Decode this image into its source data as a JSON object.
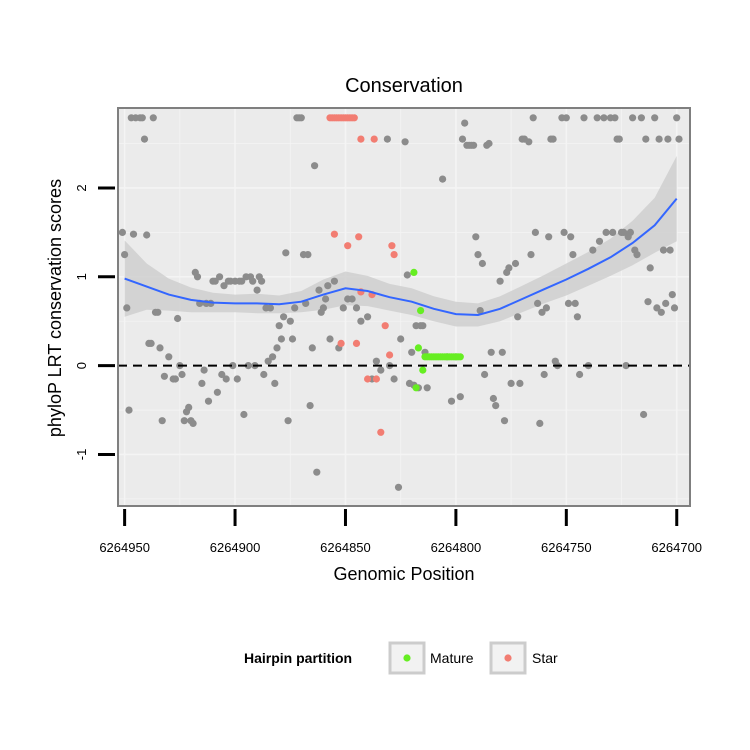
{
  "chart_data": {
    "type": "scatter",
    "title": "Conservation",
    "xlabel": "Genomic Position",
    "ylabel": "phyloP LRT conservation scores",
    "xlim": [
      6264953,
      6264694
    ],
    "x_reversed": true,
    "ylim": [
      -1.58,
      2.9
    ],
    "x_ticks": [
      6264950,
      6264900,
      6264850,
      6264800,
      6264750,
      6264700
    ],
    "x_tick_labels": [
      "6264950",
      "6264900",
      "6264850",
      "6264800",
      "6264750",
      "6264700"
    ],
    "y_ticks": [
      -1,
      0,
      1,
      2
    ],
    "y_tick_labels": [
      "-1",
      "0",
      "1",
      "2"
    ],
    "grid": true,
    "reference_line": {
      "y": 0,
      "style": "dashed",
      "color": "#000000"
    },
    "legend": {
      "title": "Hairpin partition",
      "position": "bottom",
      "entries": [
        {
          "label": "Mature",
          "color": "#66ee22"
        },
        {
          "label": "Star",
          "color": "#f27d72"
        }
      ]
    },
    "colors": {
      "other": "#8c8c8c",
      "Mature": "#66ee22",
      "Star": "#f27d72",
      "smooth": "#3366ff",
      "ribbon": "#cfcfcf",
      "panel": "#ebebeb",
      "grid": "#f4f4f4"
    },
    "smooth": {
      "x": [
        6264950,
        6264940,
        6264930,
        6264920,
        6264910,
        6264900,
        6264890,
        6264880,
        6264870,
        6264860,
        6264850,
        6264840,
        6264830,
        6264820,
        6264810,
        6264800,
        6264790,
        6264780,
        6264770,
        6264760,
        6264750,
        6264740,
        6264730,
        6264720,
        6264710,
        6264700
      ],
      "y": [
        0.98,
        0.89,
        0.8,
        0.74,
        0.71,
        0.7,
        0.7,
        0.69,
        0.72,
        0.8,
        0.87,
        0.84,
        0.77,
        0.72,
        0.64,
        0.58,
        0.57,
        0.64,
        0.75,
        0.86,
        0.97,
        1.09,
        1.22,
        1.38,
        1.58,
        1.88
      ],
      "lower": [
        0.55,
        0.63,
        0.62,
        0.6,
        0.6,
        0.6,
        0.59,
        0.59,
        0.6,
        0.63,
        0.68,
        0.67,
        0.62,
        0.57,
        0.5,
        0.44,
        0.44,
        0.5,
        0.6,
        0.7,
        0.79,
        0.9,
        1.01,
        1.13,
        1.27,
        1.4
      ],
      "upper": [
        1.41,
        1.15,
        0.98,
        0.88,
        0.82,
        0.8,
        0.81,
        0.79,
        0.84,
        0.97,
        1.06,
        1.01,
        0.92,
        0.87,
        0.78,
        0.72,
        0.7,
        0.78,
        0.9,
        1.02,
        1.15,
        1.28,
        1.43,
        1.63,
        1.89,
        2.36
      ]
    },
    "series": [
      {
        "name": "",
        "points": [
          [
            6264951,
            1.5
          ],
          [
            6264950,
            1.25
          ],
          [
            6264949,
            0.65
          ],
          [
            6264948,
            -0.5
          ],
          [
            6264947,
            2.79
          ],
          [
            6264946,
            1.48
          ],
          [
            6264945,
            2.79
          ],
          [
            6264943,
            2.79
          ],
          [
            6264942,
            2.79
          ],
          [
            6264941,
            2.55
          ],
          [
            6264940,
            1.47
          ],
          [
            6264939,
            0.25
          ],
          [
            6264938,
            0.25
          ],
          [
            6264937,
            2.79
          ],
          [
            6264936,
            0.6
          ],
          [
            6264935,
            0.6
          ],
          [
            6264934,
            0.2
          ],
          [
            6264933,
            -0.62
          ],
          [
            6264932,
            -0.12
          ],
          [
            6264930,
            0.1
          ],
          [
            6264928,
            -0.15
          ],
          [
            6264927,
            -0.15
          ],
          [
            6264926,
            0.53
          ],
          [
            6264925,
            0.0
          ],
          [
            6264924,
            -0.1
          ],
          [
            6264923,
            -0.62
          ],
          [
            6264922,
            -0.52
          ],
          [
            6264921,
            -0.47
          ],
          [
            6264920,
            -0.62
          ],
          [
            6264919,
            -0.65
          ],
          [
            6264918,
            1.05
          ],
          [
            6264917,
            1.0
          ],
          [
            6264916,
            0.7
          ],
          [
            6264915,
            -0.2
          ],
          [
            6264914,
            -0.05
          ],
          [
            6264913,
            0.7
          ],
          [
            6264912,
            -0.4
          ],
          [
            6264911,
            0.7
          ],
          [
            6264910,
            0.95
          ],
          [
            6264909,
            0.95
          ],
          [
            6264908,
            -0.3
          ],
          [
            6264907,
            1.0
          ],
          [
            6264906,
            -0.1
          ],
          [
            6264905,
            0.9
          ],
          [
            6264904,
            -0.15
          ],
          [
            6264903,
            0.95
          ],
          [
            6264902,
            0.95
          ],
          [
            6264901,
            0.0
          ],
          [
            6264900,
            0.95
          ],
          [
            6264899,
            -0.15
          ],
          [
            6264898,
            0.95
          ],
          [
            6264897,
            0.95
          ],
          [
            6264896,
            -0.55
          ],
          [
            6264895,
            1.0
          ],
          [
            6264894,
            0.0
          ],
          [
            6264893,
            1.0
          ],
          [
            6264892,
            0.95
          ],
          [
            6264891,
            0.0
          ],
          [
            6264890,
            0.85
          ],
          [
            6264889,
            1.0
          ],
          [
            6264888,
            0.95
          ],
          [
            6264887,
            -0.1
          ],
          [
            6264886,
            0.65
          ],
          [
            6264885,
            0.05
          ],
          [
            6264884,
            0.65
          ],
          [
            6264883,
            0.1
          ],
          [
            6264882,
            -0.2
          ],
          [
            6264881,
            0.2
          ],
          [
            6264880,
            0.45
          ],
          [
            6264879,
            0.3
          ],
          [
            6264878,
            0.55
          ],
          [
            6264877,
            1.27
          ],
          [
            6264876,
            -0.62
          ],
          [
            6264875,
            0.5
          ],
          [
            6264874,
            0.3
          ],
          [
            6264873,
            0.65
          ],
          [
            6264872,
            2.79
          ],
          [
            6264871,
            2.79
          ],
          [
            6264870,
            2.79
          ],
          [
            6264869,
            1.25
          ],
          [
            6264868,
            0.7
          ],
          [
            6264867,
            1.25
          ],
          [
            6264866,
            -0.45
          ],
          [
            6264865,
            0.2
          ],
          [
            6264864,
            2.25
          ],
          [
            6264863,
            -1.2
          ],
          [
            6264862,
            0.85
          ],
          [
            6264861,
            0.6
          ],
          [
            6264860,
            0.65
          ],
          [
            6264859,
            0.75
          ],
          [
            6264858,
            0.9
          ],
          [
            6264857,
            0.3
          ],
          [
            6264855,
            0.95
          ],
          [
            6264853,
            0.2
          ],
          [
            6264851,
            0.65
          ],
          [
            6264849,
            0.75
          ],
          [
            6264847,
            0.75
          ],
          [
            6264845,
            0.65
          ],
          [
            6264843,
            0.5
          ],
          [
            6264840,
            0.55
          ],
          [
            6264838,
            -0.15
          ],
          [
            6264836,
            0.05
          ],
          [
            6264834,
            -0.05
          ],
          [
            6264831,
            2.55
          ],
          [
            6264830,
            0.0
          ],
          [
            6264828,
            -0.15
          ],
          [
            6264826,
            -1.37
          ],
          [
            6264825,
            0.3
          ],
          [
            6264823,
            2.52
          ],
          [
            6264822,
            1.02
          ],
          [
            6264821,
            -0.2
          ],
          [
            6264820,
            0.15
          ],
          [
            6264819,
            -0.22
          ],
          [
            6264818,
            0.45
          ],
          [
            6264817,
            -0.25
          ],
          [
            6264816,
            0.45
          ],
          [
            6264815,
            0.45
          ],
          [
            6264814,
            0.15
          ],
          [
            6264813,
            -0.25
          ],
          [
            6264806,
            2.1
          ],
          [
            6264804,
            0.1
          ],
          [
            6264802,
            -0.4
          ],
          [
            6264800,
            0.1
          ],
          [
            6264798,
            -0.35
          ],
          [
            6264797,
            2.55
          ],
          [
            6264796,
            2.73
          ],
          [
            6264795,
            2.48
          ],
          [
            6264794,
            2.48
          ],
          [
            6264793,
            2.48
          ],
          [
            6264792,
            2.48
          ],
          [
            6264791,
            1.45
          ],
          [
            6264790,
            1.25
          ],
          [
            6264789,
            0.62
          ],
          [
            6264788,
            1.15
          ],
          [
            6264787,
            -0.1
          ],
          [
            6264786,
            2.48
          ],
          [
            6264785,
            2.5
          ],
          [
            6264784,
            0.15
          ],
          [
            6264783,
            -0.37
          ],
          [
            6264782,
            -0.45
          ],
          [
            6264780,
            0.95
          ],
          [
            6264779,
            0.15
          ],
          [
            6264778,
            -0.62
          ],
          [
            6264777,
            1.05
          ],
          [
            6264776,
            1.1
          ],
          [
            6264775,
            -0.2
          ],
          [
            6264773,
            1.15
          ],
          [
            6264772,
            0.55
          ],
          [
            6264771,
            -0.2
          ],
          [
            6264770,
            2.55
          ],
          [
            6264769,
            2.55
          ],
          [
            6264767,
            2.52
          ],
          [
            6264766,
            1.25
          ],
          [
            6264765,
            2.79
          ],
          [
            6264764,
            1.5
          ],
          [
            6264763,
            0.7
          ],
          [
            6264762,
            -0.65
          ],
          [
            6264761,
            0.6
          ],
          [
            6264760,
            -0.1
          ],
          [
            6264759,
            0.65
          ],
          [
            6264758,
            1.45
          ],
          [
            6264757,
            2.55
          ],
          [
            6264756,
            2.55
          ],
          [
            6264755,
            0.05
          ],
          [
            6264754,
            0.0
          ],
          [
            6264752,
            2.79
          ],
          [
            6264751,
            1.5
          ],
          [
            6264750,
            2.79
          ],
          [
            6264749,
            0.7
          ],
          [
            6264748,
            1.45
          ],
          [
            6264747,
            1.25
          ],
          [
            6264746,
            0.7
          ],
          [
            6264745,
            0.55
          ],
          [
            6264744,
            -0.1
          ],
          [
            6264742,
            2.79
          ],
          [
            6264740,
            0.0
          ],
          [
            6264738,
            1.3
          ],
          [
            6264736,
            2.79
          ],
          [
            6264735,
            1.4
          ],
          [
            6264733,
            2.79
          ],
          [
            6264732,
            1.5
          ],
          [
            6264730,
            2.79
          ],
          [
            6264729,
            1.5
          ],
          [
            6264728,
            2.79
          ],
          [
            6264727,
            2.55
          ],
          [
            6264726,
            2.55
          ],
          [
            6264725,
            1.5
          ],
          [
            6264724,
            1.5
          ],
          [
            6264723,
            0.0
          ],
          [
            6264722,
            1.45
          ],
          [
            6264721,
            1.5
          ],
          [
            6264720,
            2.79
          ],
          [
            6264719,
            1.3
          ],
          [
            6264718,
            1.25
          ],
          [
            6264716,
            2.79
          ],
          [
            6264715,
            -0.55
          ],
          [
            6264714,
            2.55
          ],
          [
            6264713,
            0.72
          ],
          [
            6264712,
            1.1
          ],
          [
            6264710,
            2.79
          ],
          [
            6264709,
            0.65
          ],
          [
            6264708,
            2.55
          ],
          [
            6264707,
            0.6
          ],
          [
            6264706,
            1.3
          ],
          [
            6264705,
            0.7
          ],
          [
            6264704,
            2.55
          ],
          [
            6264703,
            1.3
          ],
          [
            6264702,
            0.8
          ],
          [
            6264701,
            0.65
          ],
          [
            6264700,
            2.79
          ],
          [
            6264699,
            2.55
          ]
        ]
      },
      {
        "name": "Star",
        "points": [
          [
            6264857,
            2.79
          ],
          [
            6264856,
            2.79
          ],
          [
            6264855,
            2.79
          ],
          [
            6264854,
            2.79
          ],
          [
            6264853,
            2.79
          ],
          [
            6264852,
            2.79
          ],
          [
            6264851,
            2.79
          ],
          [
            6264850,
            2.79
          ],
          [
            6264849,
            2.79
          ],
          [
            6264848,
            2.79
          ],
          [
            6264847,
            2.79
          ],
          [
            6264846,
            2.79
          ],
          [
            6264843,
            2.55
          ],
          [
            6264837,
            2.55
          ],
          [
            6264852,
            0.25
          ],
          [
            6264845,
            0.25
          ],
          [
            6264843,
            0.83
          ],
          [
            6264840,
            -0.15
          ],
          [
            6264838,
            0.8
          ],
          [
            6264836,
            -0.15
          ],
          [
            6264834,
            -0.75
          ],
          [
            6264832,
            0.45
          ],
          [
            6264830,
            0.12
          ],
          [
            6264829,
            1.35
          ],
          [
            6264828,
            1.25
          ],
          [
            6264855,
            1.48
          ],
          [
            6264849,
            1.35
          ],
          [
            6264844,
            1.45
          ]
        ]
      },
      {
        "name": "Mature",
        "points": [
          [
            6264819,
            1.05
          ],
          [
            6264818,
            -0.25
          ],
          [
            6264817,
            0.2
          ],
          [
            6264816,
            0.62
          ],
          [
            6264815,
            -0.05
          ],
          [
            6264814,
            0.1
          ],
          [
            6264813,
            0.1
          ],
          [
            6264812,
            0.1
          ],
          [
            6264811,
            0.1
          ],
          [
            6264810,
            0.1
          ],
          [
            6264809,
            0.1
          ],
          [
            6264808,
            0.1
          ],
          [
            6264807,
            0.1
          ],
          [
            6264806,
            0.1
          ],
          [
            6264805,
            0.1
          ],
          [
            6264804,
            0.1
          ],
          [
            6264803,
            0.1
          ],
          [
            6264802,
            0.1
          ],
          [
            6264801,
            0.1
          ],
          [
            6264800,
            0.1
          ],
          [
            6264799,
            0.1
          ],
          [
            6264798,
            0.1
          ]
        ]
      }
    ]
  }
}
